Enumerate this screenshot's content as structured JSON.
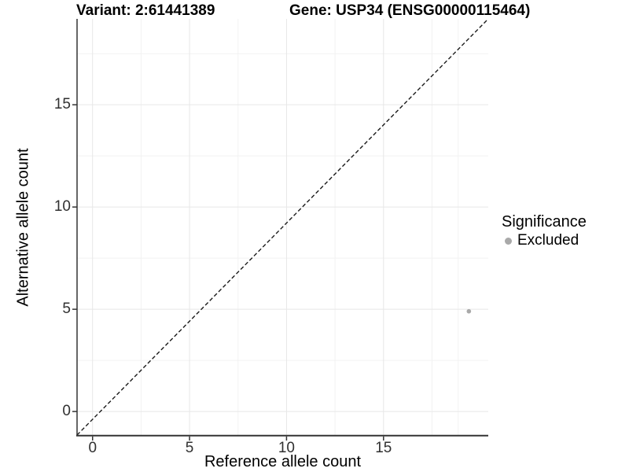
{
  "header": {
    "variant_title": "Variant: 2:61441389",
    "gene_title": "Gene: USP34 (ENSG00000115464)"
  },
  "legend": {
    "title": "Significance",
    "items": [
      {
        "label": "Excluded",
        "color": "#a9a9a9"
      }
    ]
  },
  "chart_data": {
    "type": "scatter",
    "title": "Variant: 2:61441389  Gene: USP34 (ENSG00000115464)",
    "xlabel": "Reference allele count",
    "ylabel": "Alternative allele count",
    "x_ticks": [
      0,
      5,
      10,
      15
    ],
    "y_ticks": [
      0,
      5,
      10,
      15
    ],
    "x_minor_gridlines": [
      2.5,
      7.5,
      12.5,
      17.5,
      18.85
    ],
    "y_minor_gridlines": [
      2.5,
      7.5,
      12.5,
      17.5
    ],
    "xlim": [
      -0.8,
      20.4
    ],
    "ylim": [
      -1.15,
      19.2
    ],
    "grid": true,
    "legend_position": "right",
    "series": [
      {
        "name": "Excluded",
        "color": "#a9a9a9",
        "points": [
          {
            "x": 19.4,
            "y": 4.9
          }
        ]
      }
    ],
    "reference_line": {
      "style": "dashed",
      "color": "#1a1a1a",
      "from": [
        -0.8,
        -1.15
      ],
      "to": [
        20.4,
        19.2
      ]
    }
  },
  "colors": {
    "background": "#ffffff",
    "grid_major": "#e7e7e7",
    "grid_minor": "#f2f2f2",
    "axis_line": "#333333",
    "tick_text": "#303030",
    "point": "#a9a9a9"
  }
}
